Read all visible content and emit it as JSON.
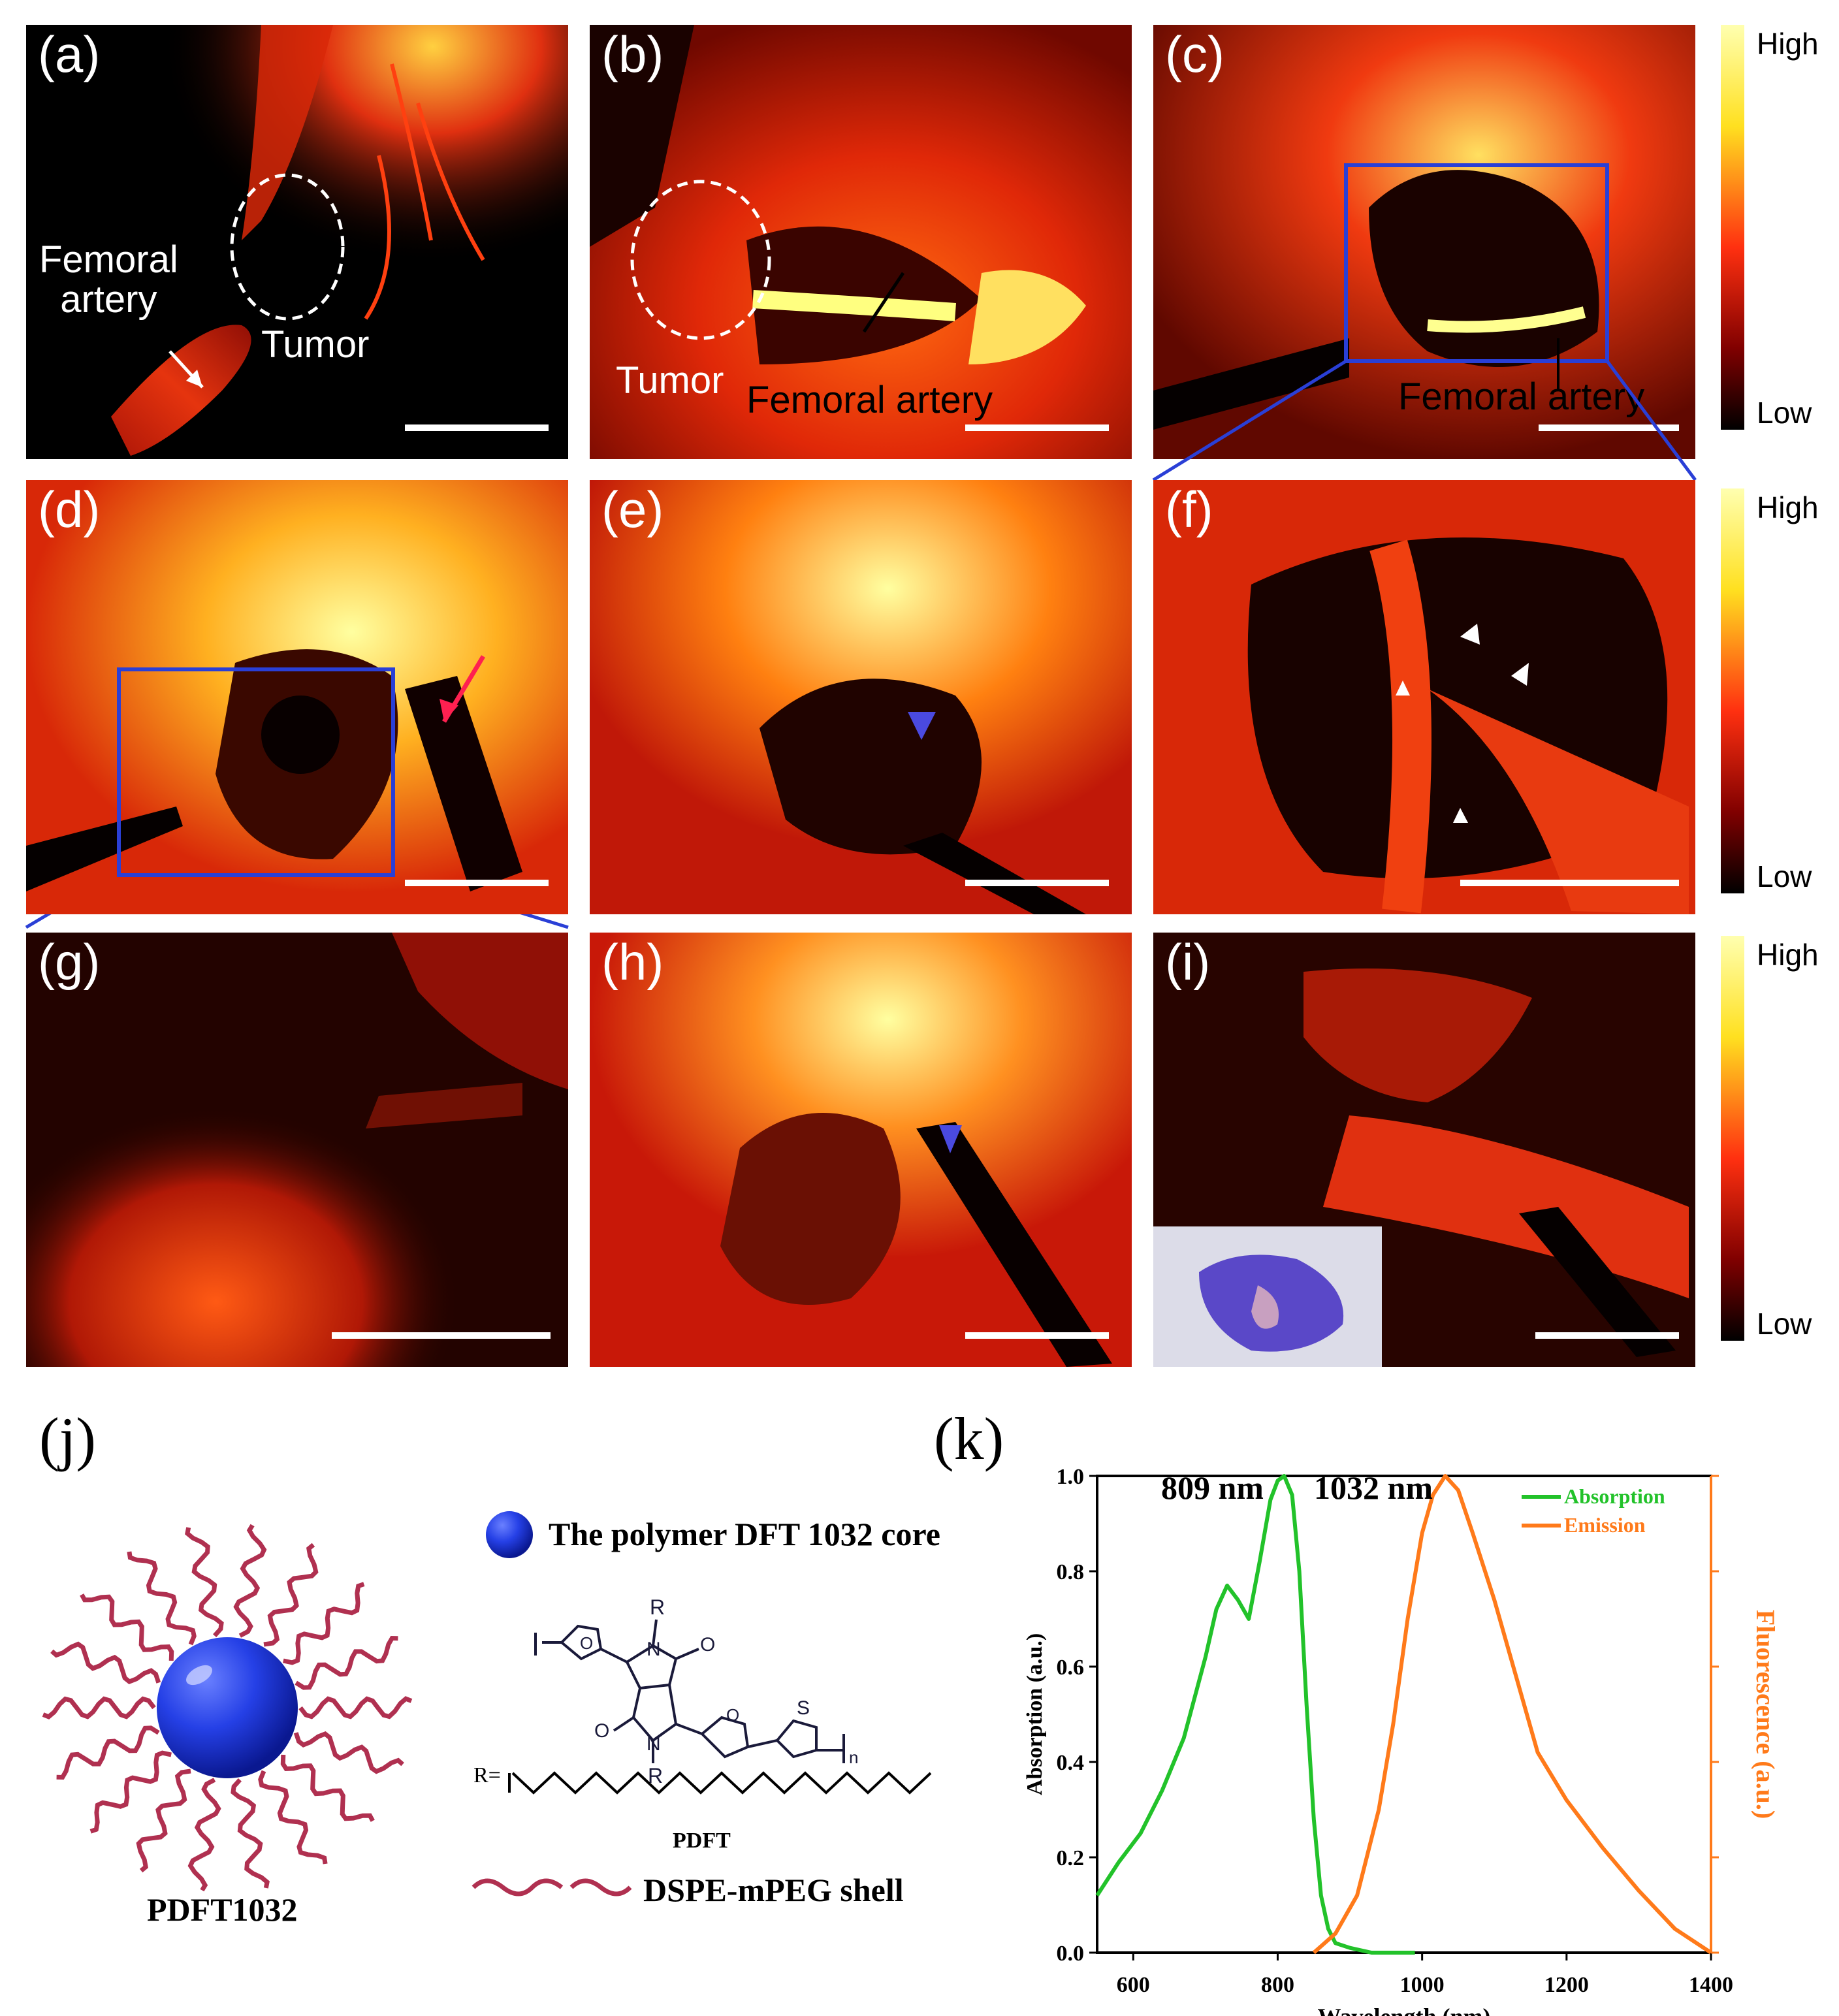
{
  "colors": {
    "hot_low": "#000000",
    "hot_mid": "#e8280a",
    "hot_high": "#ffff66",
    "zoom_box": "#2a3fd6",
    "absorption": "#22c22a",
    "emission": "#ff7a1a",
    "core": "#2540e6",
    "shell": "#b03050"
  },
  "panels": {
    "a": {
      "label": "(a)",
      "femoral": "Femoral\nartery",
      "tumor": "Tumor"
    },
    "b": {
      "label": "(b)",
      "tumor": "Tumor",
      "femoral": "Femoral artery"
    },
    "c": {
      "label": "(c)",
      "femoral": "Femoral artery"
    },
    "d": {
      "label": "(d)"
    },
    "e": {
      "label": "(e)"
    },
    "f": {
      "label": "(f)"
    },
    "g": {
      "label": "(g)"
    },
    "h": {
      "label": "(h)"
    },
    "i": {
      "label": "(i)"
    }
  },
  "colorbars": [
    {
      "high": "High",
      "low": "Low"
    },
    {
      "high": "High",
      "low": "Low"
    },
    {
      "high": "High",
      "low": "Low"
    }
  ],
  "panel_j": {
    "label": "(j)",
    "core_legend": "The polymer DFT 1032 core",
    "polymer_name": "PDFT",
    "r_label": "R=",
    "shell_legend": "DSPE-mPEG shell",
    "nanoparticle_name": "PDFT1032",
    "atoms": {
      "R": "R",
      "N": "N",
      "O": "O",
      "S": "S",
      "n": "n"
    }
  },
  "chart_data": {
    "type": "line",
    "label": "(k)",
    "xlabel": "Wavelength (nm)",
    "ylabel_left": "Absorption (a.u.)",
    "ylabel_right": "Fluorescence (a.u.)",
    "xlim": [
      550,
      1400
    ],
    "ylim": [
      0,
      1.0
    ],
    "x_ticks": [
      "600",
      "800",
      "1000",
      "1200",
      "1400"
    ],
    "y_ticks": [
      "0.0",
      "0.2",
      "0.4",
      "0.6",
      "0.8",
      "1.0"
    ],
    "annotations": [
      "809 nm",
      "1032 nm"
    ],
    "legend_position": "top-right",
    "series": [
      {
        "name": "Absorption",
        "color": "#22c22a",
        "x": [
          550,
          580,
          610,
          640,
          670,
          700,
          715,
          730,
          745,
          760,
          775,
          790,
          800,
          809,
          820,
          830,
          840,
          850,
          860,
          870,
          880,
          900,
          930,
          960,
          990
        ],
        "y": [
          0.12,
          0.19,
          0.25,
          0.34,
          0.45,
          0.62,
          0.72,
          0.77,
          0.74,
          0.7,
          0.82,
          0.95,
          0.99,
          1.0,
          0.96,
          0.8,
          0.52,
          0.28,
          0.12,
          0.05,
          0.02,
          0.01,
          0.0,
          0.0,
          0.0
        ]
      },
      {
        "name": "Emission",
        "color": "#ff7a1a",
        "x": [
          850,
          880,
          910,
          940,
          960,
          980,
          1000,
          1015,
          1032,
          1050,
          1070,
          1100,
          1130,
          1160,
          1200,
          1250,
          1300,
          1350,
          1400
        ],
        "y": [
          0.0,
          0.04,
          0.12,
          0.3,
          0.48,
          0.7,
          0.88,
          0.96,
          1.0,
          0.97,
          0.88,
          0.74,
          0.58,
          0.42,
          0.32,
          0.22,
          0.13,
          0.05,
          0.0
        ]
      }
    ]
  }
}
